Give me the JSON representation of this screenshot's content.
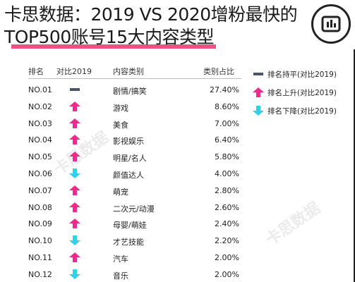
{
  "title": {
    "line1": "卡思数据：2019 VS 2020增粉最快的",
    "line2": "TOP500账号15大内容类型"
  },
  "table": {
    "headers": {
      "rank": "排名",
      "compare": "对比2019",
      "category": "内容类别",
      "share": "类别占比"
    }
  },
  "legend": {
    "flat": "排名持平(对比2019)",
    "up": "排名上升(对比2019)",
    "down": "排名下降(对比2019)"
  },
  "colors": {
    "up": "#ee2a8c",
    "down": "#2fd0e8",
    "flat": "#4b5468",
    "accent": "#e8356b"
  },
  "chart_data": {
    "type": "table",
    "columns": [
      "排名",
      "对比2019",
      "内容类别",
      "类别占比"
    ],
    "rows": [
      {
        "rank": "NO.01",
        "trend": "flat",
        "category": "剧情/搞笑",
        "share": "27.40%"
      },
      {
        "rank": "NO.02",
        "trend": "up",
        "category": "游戏",
        "share": "8.60%"
      },
      {
        "rank": "NO.03",
        "trend": "up",
        "category": "美食",
        "share": "7.00%"
      },
      {
        "rank": "NO.04",
        "trend": "up",
        "category": "影视娱乐",
        "share": "6.40%"
      },
      {
        "rank": "NO.05",
        "trend": "up",
        "category": "明星/名人",
        "share": "5.80%"
      },
      {
        "rank": "NO.06",
        "trend": "down",
        "category": "颜值达人",
        "share": "4.00%"
      },
      {
        "rank": "NO.07",
        "trend": "up",
        "category": "萌宠",
        "share": "2.80%"
      },
      {
        "rank": "NO.08",
        "trend": "up",
        "category": "二次元/动漫",
        "share": "2.60%"
      },
      {
        "rank": "NO.09",
        "trend": "up",
        "category": "母婴/萌娃",
        "share": "2.40%"
      },
      {
        "rank": "NO.10",
        "trend": "down",
        "category": "才艺技能",
        "share": "2.20%"
      },
      {
        "rank": "NO.11",
        "trend": "up",
        "category": "汽车",
        "share": "2.00%"
      },
      {
        "rank": "NO.12",
        "trend": "down",
        "category": "音乐",
        "share": "2.00%"
      }
    ]
  }
}
